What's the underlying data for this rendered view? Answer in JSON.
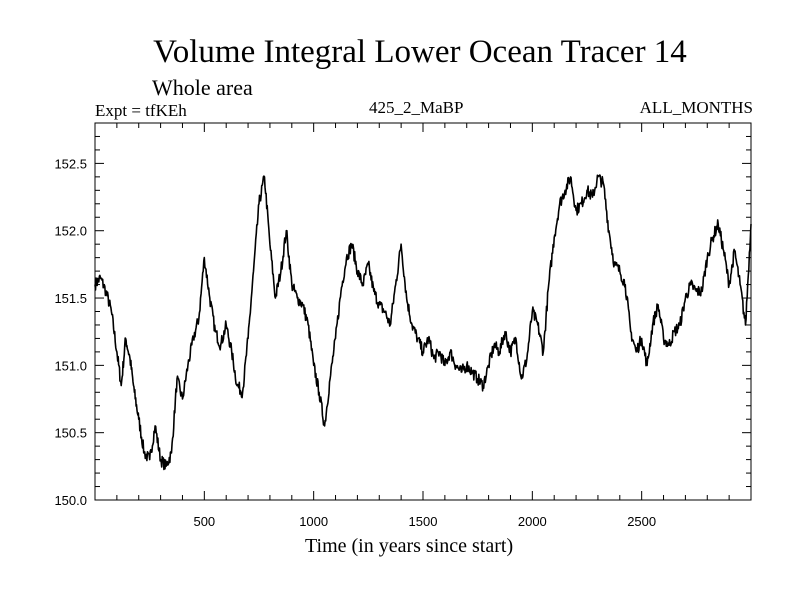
{
  "header": {
    "title": "Volume Integral Lower Ocean Tracer 14",
    "subtitle": "Whole area",
    "expt_label": "Expt = tfKEh",
    "run_label": "425_2_MaBP",
    "months_label": "ALL_MONTHS"
  },
  "chart_data": {
    "type": "line",
    "title": "Volume Integral Lower Ocean Tracer 14",
    "subtitle": "Whole area",
    "xlabel": "Time (in years since start)",
    "ylabel": "",
    "xlim": [
      0,
      3000
    ],
    "ylim": [
      150.0,
      152.8
    ],
    "x_ticks": [
      500,
      1000,
      1500,
      2000,
      2500
    ],
    "x_tick_labels": [
      "500",
      "1000",
      "1500",
      "2000",
      "2500"
    ],
    "y_ticks": [
      150.0,
      150.5,
      151.0,
      151.5,
      152.0,
      152.5
    ],
    "y_tick_labels": [
      "150.0",
      "150.5",
      "151.0",
      "151.5",
      "152.0",
      "152.5"
    ],
    "grid": false,
    "series": [
      {
        "x": [
          0,
          25,
          50,
          75,
          100,
          120,
          140,
          160,
          180,
          200,
          225,
          250,
          275,
          300,
          325,
          350,
          375,
          400,
          425,
          450,
          475,
          500,
          525,
          550,
          575,
          600,
          625,
          650,
          675,
          700,
          725,
          750,
          775,
          800,
          825,
          850,
          875,
          900,
          925,
          950,
          975,
          1000,
          1025,
          1050,
          1075,
          1100,
          1125,
          1150,
          1175,
          1200,
          1225,
          1250,
          1275,
          1300,
          1325,
          1350,
          1375,
          1400,
          1425,
          1450,
          1475,
          1500,
          1525,
          1550,
          1575,
          1600,
          1625,
          1650,
          1675,
          1700,
          1725,
          1750,
          1775,
          1800,
          1825,
          1850,
          1875,
          1900,
          1925,
          1950,
          1975,
          2000,
          2025,
          2050,
          2075,
          2100,
          2125,
          2150,
          2175,
          2200,
          2225,
          2250,
          2275,
          2300,
          2325,
          2350,
          2375,
          2400,
          2425,
          2450,
          2475,
          2500,
          2525,
          2550,
          2575,
          2600,
          2625,
          2650,
          2675,
          2700,
          2725,
          2750,
          2775,
          2800,
          2825,
          2850,
          2875,
          2900,
          2925,
          2950,
          2975,
          3000
        ],
        "y": [
          151.6,
          151.65,
          151.55,
          151.4,
          151.1,
          150.85,
          151.2,
          151.05,
          150.8,
          150.6,
          150.35,
          150.3,
          150.55,
          150.3,
          150.25,
          150.35,
          150.9,
          150.75,
          151.0,
          151.2,
          151.35,
          151.8,
          151.5,
          151.25,
          151.15,
          151.3,
          151.1,
          150.85,
          150.8,
          151.2,
          151.7,
          152.2,
          152.4,
          151.9,
          151.5,
          151.7,
          152.0,
          151.6,
          151.5,
          151.45,
          151.3,
          151.0,
          150.8,
          150.55,
          150.9,
          151.2,
          151.55,
          151.8,
          151.9,
          151.7,
          151.6,
          151.75,
          151.55,
          151.45,
          151.4,
          151.3,
          151.6,
          151.9,
          151.5,
          151.3,
          151.2,
          151.1,
          151.2,
          151.05,
          151.1,
          151.0,
          151.1,
          151.0,
          150.95,
          151.0,
          150.95,
          150.9,
          150.85,
          151.0,
          151.15,
          151.1,
          151.25,
          151.1,
          151.2,
          150.9,
          151.05,
          151.4,
          151.3,
          151.1,
          151.6,
          151.95,
          152.2,
          152.3,
          152.4,
          152.15,
          152.2,
          152.3,
          152.25,
          152.4,
          152.35,
          152.0,
          151.75,
          151.7,
          151.6,
          151.25,
          151.1,
          151.2,
          151.0,
          151.3,
          151.45,
          151.2,
          151.15,
          151.25,
          151.3,
          151.5,
          151.6,
          151.55,
          151.55,
          151.8,
          151.95,
          152.05,
          151.85,
          151.6,
          151.85,
          151.6,
          151.3,
          152.05
        ],
        "note": ""
      }
    ]
  }
}
